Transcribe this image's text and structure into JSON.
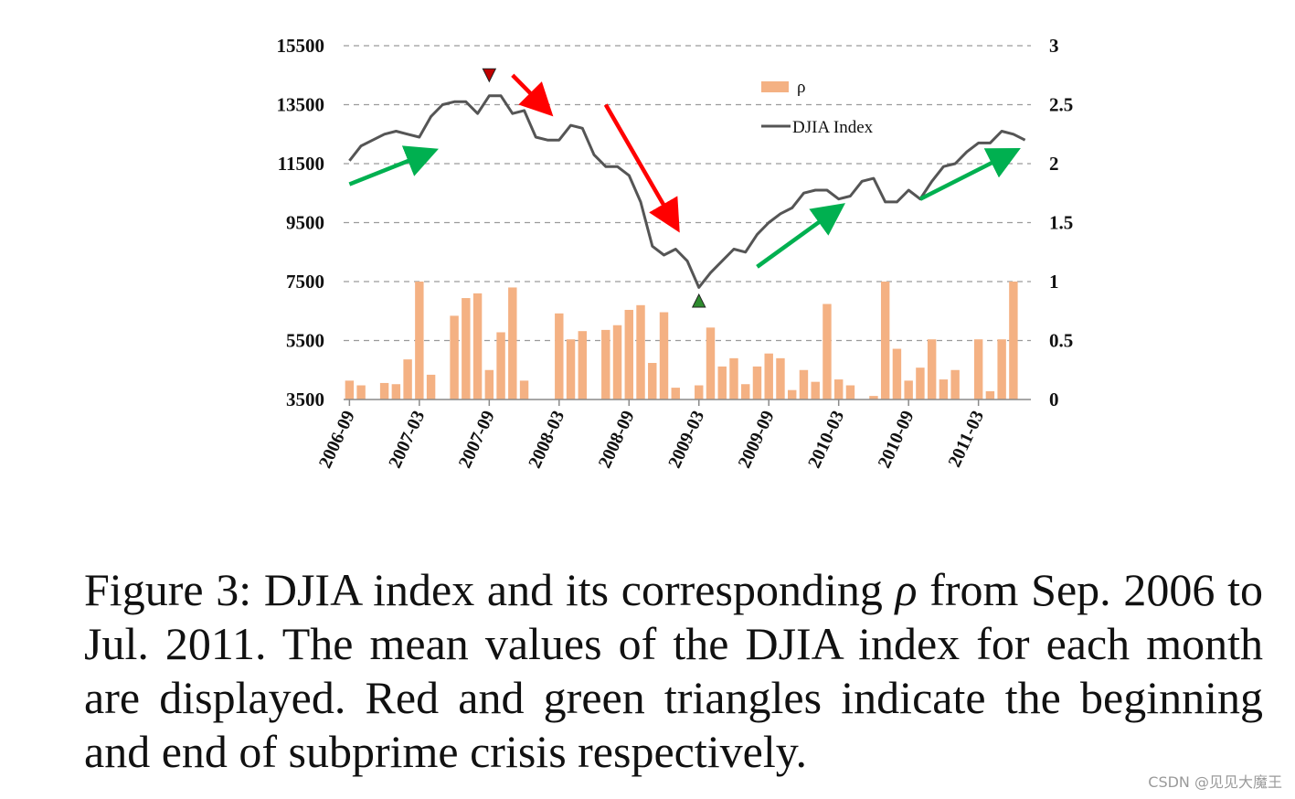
{
  "chart_data": {
    "type": "bar+line",
    "legend": [
      {
        "name": "ρ",
        "color": "#f4b183",
        "kind": "bar"
      },
      {
        "name": "DJIA Index",
        "color": "#555555",
        "kind": "line"
      }
    ],
    "legend_position": "top-right",
    "grid": "dashed horizontal",
    "left_axis": {
      "ylim": [
        3500,
        15500
      ],
      "ticks": [
        "15500",
        "13500",
        "11500",
        "9500",
        "7500",
        "5500",
        "3500"
      ]
    },
    "right_axis": {
      "ylim": [
        0,
        3
      ],
      "ticks": [
        "3",
        "2.5",
        "2",
        "1.5",
        "1",
        "0.5",
        "0"
      ]
    },
    "x_ticks": [
      "2006-09",
      "2007-03",
      "2007-09",
      "2008-03",
      "2008-09",
      "2009-03",
      "2009-09",
      "2010-03",
      "2010-09",
      "2011-03"
    ],
    "months": 59,
    "rho_series": [
      0.16,
      0.12,
      0,
      0.14,
      0.13,
      0.34,
      1.0,
      0.21,
      0,
      0.71,
      0.86,
      0.9,
      0.25,
      0.57,
      0.95,
      0.16,
      0,
      0,
      0.73,
      0.51,
      0.58,
      0,
      0.59,
      0.63,
      0.76,
      0.8,
      0.31,
      0.74,
      0.1,
      0,
      0.12,
      0.61,
      0.28,
      0.35,
      0.13,
      0.28,
      0.39,
      0.35,
      0.08,
      0.25,
      0.15,
      0.81,
      0.17,
      0.12,
      0,
      0.03,
      1.0,
      0.43,
      0.16,
      0.27,
      0.51,
      0.17,
      0.25,
      0,
      0.51,
      0.07,
      0.51,
      1.0,
      0
    ],
    "djia_series": [
      11600,
      12100,
      12300,
      12500,
      12600,
      12500,
      12400,
      13100,
      13500,
      13600,
      13600,
      13200,
      13800,
      13800,
      13200,
      13300,
      12400,
      12300,
      12300,
      12800,
      12700,
      11800,
      11400,
      11400,
      11100,
      10200,
      8700,
      8400,
      8600,
      8200,
      7300,
      7800,
      8200,
      8600,
      8500,
      9100,
      9500,
      9800,
      10000,
      10500,
      10600,
      10600,
      10300,
      10400,
      10900,
      11000,
      10200,
      10200,
      10600,
      10300,
      10900,
      11400,
      11500,
      11900,
      12200,
      12200,
      12600,
      12500,
      12300
    ],
    "markers": [
      {
        "type": "triangle-down",
        "color": "#c00000",
        "month": 12,
        "djia": 14500,
        "meaning": "beginning of subprime crisis"
      },
      {
        "type": "triangle-up",
        "color": "#2e8b2e",
        "month": 30,
        "djia": 6850,
        "meaning": "end of subprime crisis"
      }
    ],
    "trend_arrows": [
      {
        "color": "#ff0000",
        "from": [
          14,
          14500
        ],
        "to": [
          17,
          13300
        ]
      },
      {
        "color": "#ff0000",
        "from": [
          22,
          13500
        ],
        "to": [
          28,
          9400
        ]
      },
      {
        "color": "#00b050",
        "from": [
          0,
          10800
        ],
        "to": [
          7,
          11900
        ]
      },
      {
        "color": "#00b050",
        "from": [
          35,
          8000
        ],
        "to": [
          42,
          10000
        ]
      },
      {
        "color": "#00b050",
        "from": [
          49,
          10300
        ],
        "to": [
          57,
          11900
        ]
      }
    ]
  },
  "caption": {
    "part1": "Figure 3: DJIA index and its corresponding ",
    "rho": "ρ",
    "part2": " from Sep. 2006 to Jul. 2011. The mean values of the DJIA index for each month are displayed. Red and green triangles indicate the beginning and end of subprime crisis respectively."
  },
  "watermark": "CSDN @见见大魔王"
}
